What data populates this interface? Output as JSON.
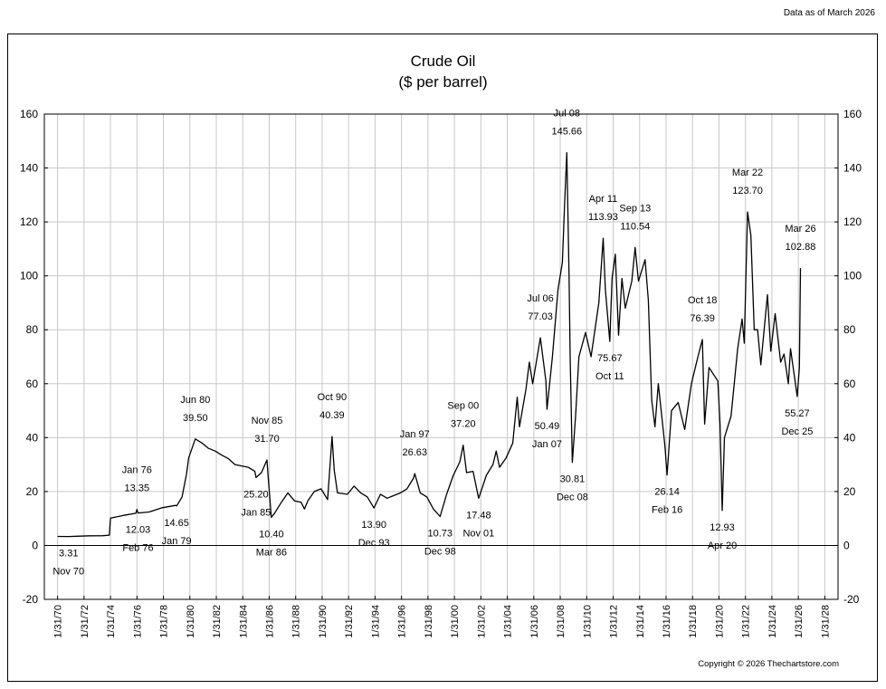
{
  "header": {
    "data_as_of": "Data as of March 2026"
  },
  "footer": {
    "copyright": "Copyright © 2026 Thechartstore.com"
  },
  "chart_data": {
    "type": "line",
    "title": "Crude Oil",
    "subtitle": "($ per barrel)",
    "xlabel": "",
    "ylabel": "",
    "ylim": [
      -20,
      160
    ],
    "yticks": [
      -20,
      0,
      20,
      40,
      60,
      80,
      100,
      120,
      140,
      160
    ],
    "xlim": [
      "1969-01-31",
      "2029-01-31"
    ],
    "xtick_labels": [
      "1/31/70",
      "1/31/72",
      "1/31/74",
      "1/31/76",
      "1/31/78",
      "1/31/80",
      "1/31/82",
      "1/31/84",
      "1/31/86",
      "1/31/88",
      "1/31/90",
      "1/31/92",
      "1/31/94",
      "1/31/96",
      "1/31/98",
      "1/31/00",
      "1/31/02",
      "1/31/04",
      "1/31/06",
      "1/31/08",
      "1/31/10",
      "1/31/12",
      "1/31/14",
      "1/31/16",
      "1/31/18",
      "1/31/20",
      "1/31/22",
      "1/31/24",
      "1/31/26",
      "1/31/28"
    ],
    "grid": true,
    "legend": "none",
    "line_color": "#000000",
    "series": [
      {
        "points": [
          [
            "1970-01-31",
            3.35
          ],
          [
            "1970-11-30",
            3.31
          ],
          [
            "1971-06-30",
            3.4
          ],
          [
            "1972-06-30",
            3.56
          ],
          [
            "1973-06-30",
            3.62
          ],
          [
            "1973-12-31",
            3.8
          ],
          [
            "1974-01-31",
            10.11
          ],
          [
            "1975-01-31",
            11.16
          ],
          [
            "1975-12-31",
            11.95
          ],
          [
            "1976-01-31",
            13.35
          ],
          [
            "1976-02-29",
            12.03
          ],
          [
            "1976-12-31",
            12.4
          ],
          [
            "1977-12-31",
            14.0
          ],
          [
            "1978-12-31",
            14.85
          ],
          [
            "1979-01-31",
            14.65
          ],
          [
            "1979-06-30",
            18.0
          ],
          [
            "1979-10-31",
            26.5
          ],
          [
            "1979-12-31",
            32.5
          ],
          [
            "1980-06-30",
            39.5
          ],
          [
            "1980-12-31",
            38.0
          ],
          [
            "1981-06-30",
            36.0
          ],
          [
            "1981-12-31",
            35.0
          ],
          [
            "1982-06-30",
            33.5
          ],
          [
            "1982-12-31",
            32.2
          ],
          [
            "1983-06-30",
            30.0
          ],
          [
            "1983-12-31",
            29.5
          ],
          [
            "1984-06-30",
            29.0
          ],
          [
            "1984-12-31",
            27.5
          ],
          [
            "1985-01-31",
            25.2
          ],
          [
            "1985-06-30",
            27.0
          ],
          [
            "1985-11-30",
            31.7
          ],
          [
            "1985-12-31",
            26.0
          ],
          [
            "1986-03-31",
            10.4
          ],
          [
            "1986-06-30",
            12.0
          ],
          [
            "1986-12-31",
            16.0
          ],
          [
            "1987-06-30",
            19.5
          ],
          [
            "1987-12-31",
            16.5
          ],
          [
            "1988-06-30",
            16.0
          ],
          [
            "1988-09-30",
            13.5
          ],
          [
            "1988-12-31",
            16.5
          ],
          [
            "1989-06-30",
            20.0
          ],
          [
            "1989-12-31",
            21.0
          ],
          [
            "1990-06-30",
            17.0
          ],
          [
            "1990-10-31",
            40.39
          ],
          [
            "1990-12-31",
            28.0
          ],
          [
            "1991-03-31",
            19.5
          ],
          [
            "1991-12-31",
            19.0
          ],
          [
            "1992-06-30",
            22.0
          ],
          [
            "1992-12-31",
            19.5
          ],
          [
            "1993-06-30",
            18.0
          ],
          [
            "1993-12-31",
            13.9
          ],
          [
            "1994-06-30",
            19.0
          ],
          [
            "1994-12-31",
            17.5
          ],
          [
            "1995-06-30",
            18.5
          ],
          [
            "1995-12-31",
            19.5
          ],
          [
            "1996-06-30",
            21.0
          ],
          [
            "1996-12-31",
            25.0
          ],
          [
            "1997-01-31",
            26.63
          ],
          [
            "1997-06-30",
            19.5
          ],
          [
            "1997-12-31",
            18.0
          ],
          [
            "1998-06-30",
            13.5
          ],
          [
            "1998-12-31",
            10.73
          ],
          [
            "1999-06-30",
            19.0
          ],
          [
            "1999-12-31",
            26.0
          ],
          [
            "2000-06-30",
            31.0
          ],
          [
            "2000-09-30",
            37.2
          ],
          [
            "2000-12-31",
            27.0
          ],
          [
            "2001-06-30",
            27.5
          ],
          [
            "2001-11-30",
            17.48
          ],
          [
            "2002-06-30",
            26.0
          ],
          [
            "2002-12-31",
            30.0
          ],
          [
            "2003-03-31",
            35.0
          ],
          [
            "2003-06-30",
            29.0
          ],
          [
            "2003-12-31",
            32.5
          ],
          [
            "2004-06-30",
            38.0
          ],
          [
            "2004-10-31",
            55.0
          ],
          [
            "2004-12-31",
            44.0
          ],
          [
            "2005-06-30",
            58.0
          ],
          [
            "2005-09-30",
            68.0
          ],
          [
            "2005-12-31",
            60.0
          ],
          [
            "2006-07-31",
            77.03
          ],
          [
            "2006-12-31",
            61.0
          ],
          [
            "2007-01-31",
            50.49
          ],
          [
            "2007-06-30",
            70.0
          ],
          [
            "2007-11-30",
            95.0
          ],
          [
            "2008-03-31",
            105.0
          ],
          [
            "2008-05-31",
            127.0
          ],
          [
            "2008-07-31",
            145.66
          ],
          [
            "2008-09-30",
            100.0
          ],
          [
            "2008-10-31",
            70.0
          ],
          [
            "2008-12-31",
            30.81
          ],
          [
            "2009-03-31",
            48.0
          ],
          [
            "2009-06-30",
            70.0
          ],
          [
            "2009-12-31",
            79.0
          ],
          [
            "2010-05-31",
            70.0
          ],
          [
            "2010-12-31",
            90.0
          ],
          [
            "2011-04-30",
            113.93
          ],
          [
            "2011-06-30",
            95.0
          ],
          [
            "2011-10-31",
            75.67
          ],
          [
            "2011-12-31",
            99.0
          ],
          [
            "2012-03-31",
            108.0
          ],
          [
            "2012-06-30",
            78.0
          ],
          [
            "2012-09-30",
            99.0
          ],
          [
            "2012-12-31",
            88.0
          ],
          [
            "2013-06-30",
            98.0
          ],
          [
            "2013-09-30",
            110.54
          ],
          [
            "2013-12-31",
            98.0
          ],
          [
            "2014-06-30",
            106.0
          ],
          [
            "2014-09-30",
            91.0
          ],
          [
            "2014-12-31",
            54.0
          ],
          [
            "2015-03-31",
            44.0
          ],
          [
            "2015-06-30",
            60.0
          ],
          [
            "2015-12-31",
            37.0
          ],
          [
            "2016-02-29",
            26.14
          ],
          [
            "2016-06-30",
            50.0
          ],
          [
            "2016-12-31",
            53.0
          ],
          [
            "2017-06-30",
            43.0
          ],
          [
            "2017-12-31",
            60.0
          ],
          [
            "2018-06-30",
            70.0
          ],
          [
            "2018-10-31",
            76.39
          ],
          [
            "2018-12-31",
            45.0
          ],
          [
            "2019-04-30",
            66.0
          ],
          [
            "2019-12-31",
            61.0
          ],
          [
            "2020-02-29",
            45.0
          ],
          [
            "2020-04-30",
            12.93
          ],
          [
            "2020-06-30",
            40.0
          ],
          [
            "2020-12-31",
            48.0
          ],
          [
            "2021-06-30",
            73.0
          ],
          [
            "2021-10-31",
            84.0
          ],
          [
            "2021-12-31",
            75.0
          ],
          [
            "2022-03-31",
            123.7
          ],
          [
            "2022-06-30",
            115.0
          ],
          [
            "2022-09-30",
            80.0
          ],
          [
            "2022-12-31",
            80.0
          ],
          [
            "2023-03-31",
            67.0
          ],
          [
            "2023-09-30",
            93.0
          ],
          [
            "2023-12-31",
            72.0
          ],
          [
            "2024-04-30",
            86.0
          ],
          [
            "2024-09-30",
            68.0
          ],
          [
            "2024-12-31",
            71.0
          ],
          [
            "2025-04-30",
            60.0
          ],
          [
            "2025-06-30",
            73.0
          ],
          [
            "2025-12-31",
            55.27
          ],
          [
            "2026-02-28",
            66.0
          ],
          [
            "2026-03-31",
            102.88
          ]
        ]
      }
    ],
    "annotations": [
      {
        "date": "1970-11-30",
        "value": 3.31,
        "value_label": "3.31",
        "date_label": "Nov 70",
        "placement": "below"
      },
      {
        "date": "1976-01-31",
        "value": 13.35,
        "value_label": "13.35",
        "date_label": "Jan 76",
        "placement": "above"
      },
      {
        "date": "1976-02-29",
        "value": 12.03,
        "value_label": "12.03",
        "date_label": "Feb 76",
        "placement": "below"
      },
      {
        "date": "1979-01-31",
        "value": 14.65,
        "value_label": "14.65",
        "date_label": "Jan 79",
        "placement": "below"
      },
      {
        "date": "1980-06-30",
        "value": 39.5,
        "value_label": "39.50",
        "date_label": "Jun 80",
        "placement": "above"
      },
      {
        "date": "1985-01-31",
        "value": 25.2,
        "value_label": "25.20",
        "date_label": "Jan 85",
        "placement": "below"
      },
      {
        "date": "1985-11-30",
        "value": 31.7,
        "value_label": "31.70",
        "date_label": "Nov 85",
        "placement": "above"
      },
      {
        "date": "1986-03-31",
        "value": 10.4,
        "value_label": "10.40",
        "date_label": "Mar 86",
        "placement": "below"
      },
      {
        "date": "1990-10-31",
        "value": 40.39,
        "value_label": "40.39",
        "date_label": "Oct 90",
        "placement": "above"
      },
      {
        "date": "1993-12-31",
        "value": 13.9,
        "value_label": "13.90",
        "date_label": "Dec 93",
        "placement": "below"
      },
      {
        "date": "1997-01-31",
        "value": 26.63,
        "value_label": "26.63",
        "date_label": "Jan 97",
        "placement": "above"
      },
      {
        "date": "1998-12-31",
        "value": 10.73,
        "value_label": "10.73",
        "date_label": "Dec 98",
        "placement": "below"
      },
      {
        "date": "2000-09-30",
        "value": 37.2,
        "value_label": "37.20",
        "date_label": "Sep 00",
        "placement": "above"
      },
      {
        "date": "2001-11-30",
        "value": 17.48,
        "value_label": "17.48",
        "date_label": "Nov 01",
        "placement": "below"
      },
      {
        "date": "2006-07-31",
        "value": 77.03,
        "value_label": "77.03",
        "date_label": "Jul 06",
        "placement": "above"
      },
      {
        "date": "2007-01-31",
        "value": 50.49,
        "value_label": "50.49",
        "date_label": "Jan 07",
        "placement": "below"
      },
      {
        "date": "2008-07-31",
        "value": 145.66,
        "value_label": "145.66",
        "date_label": "Jul 08",
        "placement": "above"
      },
      {
        "date": "2008-12-31",
        "value": 30.81,
        "value_label": "30.81",
        "date_label": "Dec 08",
        "placement": "below"
      },
      {
        "date": "2011-04-30",
        "value": 113.93,
        "value_label": "113.93",
        "date_label": "Apr 11",
        "placement": "above"
      },
      {
        "date": "2011-10-31",
        "value": 75.67,
        "value_label": "75.67",
        "date_label": "Oct 11",
        "placement": "below"
      },
      {
        "date": "2013-09-30",
        "value": 110.54,
        "value_label": "110.54",
        "date_label": "Sep 13",
        "placement": "above"
      },
      {
        "date": "2016-02-29",
        "value": 26.14,
        "value_label": "26.14",
        "date_label": "Feb 16",
        "placement": "below"
      },
      {
        "date": "2018-10-31",
        "value": 76.39,
        "value_label": "76.39",
        "date_label": "Oct 18",
        "placement": "above"
      },
      {
        "date": "2020-04-30",
        "value": 12.93,
        "value_label": "12.93",
        "date_label": "Apr 20",
        "placement": "below"
      },
      {
        "date": "2022-03-31",
        "value": 123.7,
        "value_label": "123.70",
        "date_label": "Mar 22",
        "placement": "above"
      },
      {
        "date": "2025-12-31",
        "value": 55.27,
        "value_label": "55.27",
        "date_label": "Dec 25",
        "placement": "below"
      },
      {
        "date": "2026-03-31",
        "value": 102.88,
        "value_label": "102.88",
        "date_label": "Mar 26",
        "placement": "above"
      }
    ]
  }
}
